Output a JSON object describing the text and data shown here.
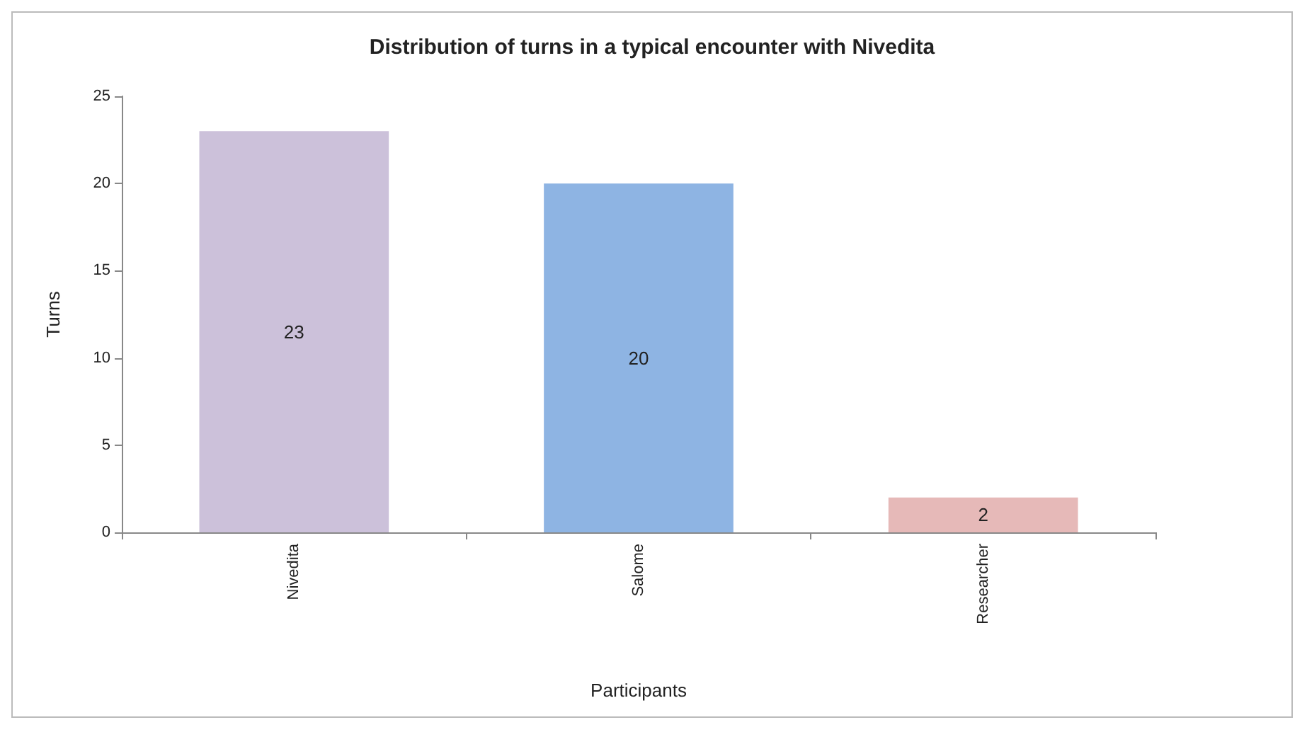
{
  "chart_data": {
    "type": "bar",
    "title": "Distribution of turns in a typical encounter with Nivedita",
    "categories": [
      "Nivedita",
      "Salome",
      "Researcher"
    ],
    "values": [
      23,
      20,
      2
    ],
    "colors": [
      "#ccc1da",
      "#8eb4e3",
      "#e6b9b8"
    ],
    "xlabel": "Participants",
    "ylabel": "Turns",
    "ylim": [
      0,
      25
    ],
    "yticks": [
      0,
      5,
      10,
      15,
      20,
      25
    ],
    "data_labels": true,
    "grid": false
  }
}
